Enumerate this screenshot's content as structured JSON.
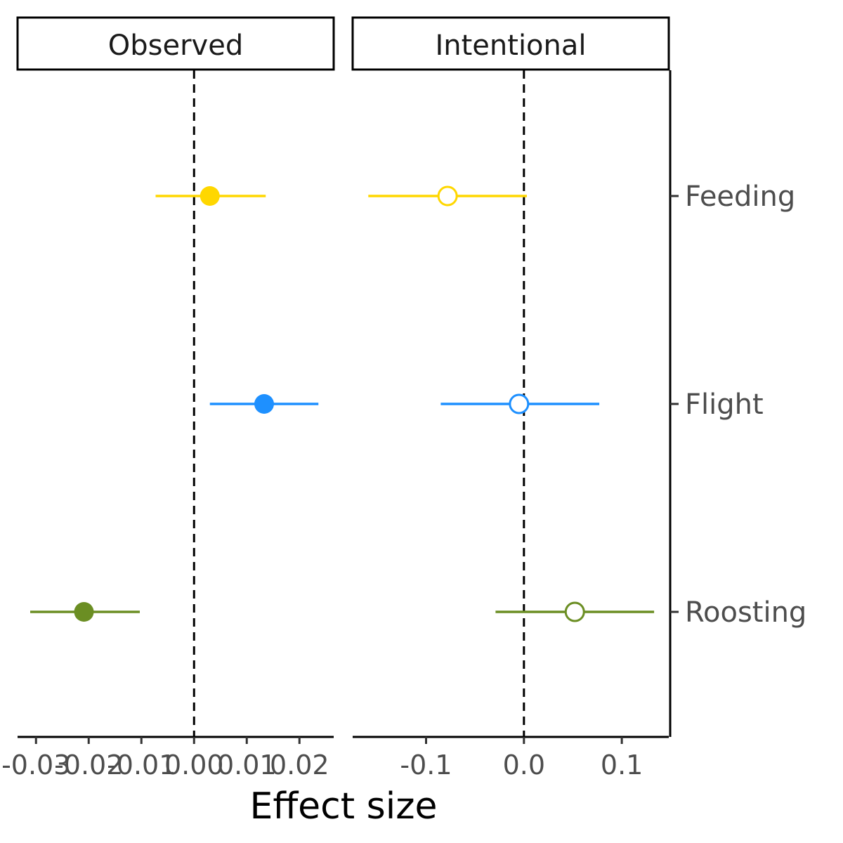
{
  "chart_data": {
    "type": "scatter",
    "subtype": "faceted point-range (forest plot)",
    "xlabel": "Effect size",
    "ylabel": "",
    "categories": [
      "Feeding",
      "Flight",
      "Roosting"
    ],
    "category_axis_position": "right",
    "reference_line": {
      "x": 0,
      "style": "dashed"
    },
    "grid": false,
    "legend": "none",
    "colors": {
      "Feeding": "#FFD700",
      "Flight": "#1E90FF",
      "Roosting": "#6B8E23"
    },
    "panels": [
      {
        "label": "Observed",
        "xlim": [
          -0.0335,
          0.0265
        ],
        "x_ticks": [
          -0.03,
          -0.02,
          -0.01,
          0.0,
          0.01,
          0.02
        ],
        "x_tick_labels": [
          "-0.03",
          "-0.02",
          "-0.01",
          "0.00",
          "0.01",
          "0.02"
        ],
        "marker": "filled",
        "points": [
          {
            "category": "Feeding",
            "estimate": 0.003,
            "lower": -0.0073,
            "upper": 0.0136
          },
          {
            "category": "Flight",
            "estimate": 0.0133,
            "lower": 0.003,
            "upper": 0.0236
          },
          {
            "category": "Roosting",
            "estimate": -0.0209,
            "lower": -0.0311,
            "upper": -0.0103
          }
        ]
      },
      {
        "label": "Intentional",
        "xlim": [
          -0.175,
          0.148
        ],
        "x_ticks": [
          -0.1,
          0.0,
          0.1
        ],
        "x_tick_labels": [
          "-0.1",
          "0.0",
          "0.1"
        ],
        "marker": "open",
        "points": [
          {
            "category": "Feeding",
            "estimate": -0.078,
            "lower": -0.159,
            "upper": 0.003
          },
          {
            "category": "Flight",
            "estimate": -0.005,
            "lower": -0.085,
            "upper": 0.077
          },
          {
            "category": "Roosting",
            "estimate": 0.052,
            "lower": -0.029,
            "upper": 0.133
          }
        ]
      }
    ]
  }
}
